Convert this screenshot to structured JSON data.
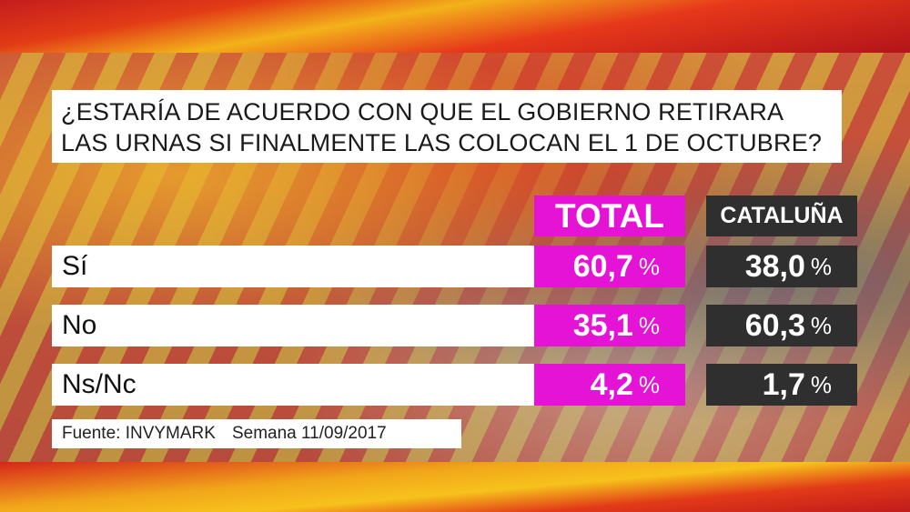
{
  "question": {
    "line1": "¿ESTARÍA DE ACUERDO CON QUE EL GOBIERNO RETIRARA",
    "line2": "LAS URNAS SI FINALMENTE LAS COLOCAN EL 1 DE OCTUBRE?"
  },
  "source": {
    "fuente": "Fuente: INVYMARK",
    "semana": "Semana 11/09/2017"
  },
  "colors": {
    "total": "#e413d6",
    "cataluna": "#2f2f2f"
  },
  "chart_data": {
    "type": "table",
    "columns": [
      "TOTAL",
      "CATALUÑA"
    ],
    "unit": "%",
    "rows": [
      {
        "label": "Sí",
        "values": [
          "60,7",
          "38,0"
        ]
      },
      {
        "label": "No",
        "values": [
          "35,1",
          "60,3"
        ]
      },
      {
        "label": "Ns/Nc",
        "values": [
          "4,2",
          "1,7"
        ]
      }
    ]
  }
}
